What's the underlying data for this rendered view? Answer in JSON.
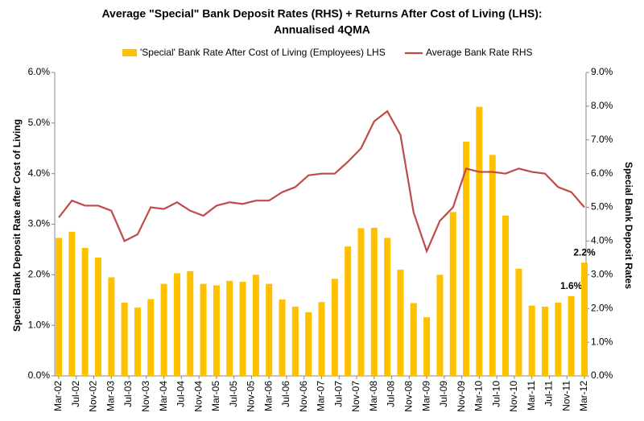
{
  "chart_data": {
    "type": "bar-line",
    "title": [
      "Average \"Special\" Bank Deposit Rates (RHS) + Returns After Cost of Living (LHS):",
      "Annualised  4QMA"
    ],
    "y_label": "Special Bank Deposit Rate after Cost of Living",
    "y2_label": "Special Bank Deposit Rates",
    "x": [
      "2002-03",
      "2002-06",
      "2002-09",
      "2002-12",
      "2003-03",
      "2003-06",
      "2003-09",
      "2003-12",
      "2004-03",
      "2004-06",
      "2004-09",
      "2004-12",
      "2005-03",
      "2005-06",
      "2005-09",
      "2005-12",
      "2006-03",
      "2006-06",
      "2006-09",
      "2006-12",
      "2007-03",
      "2007-06",
      "2007-09",
      "2007-12",
      "2008-03",
      "2008-06",
      "2008-09",
      "2008-12",
      "2009-03",
      "2009-06",
      "2009-09",
      "2009-12",
      "2010-03",
      "2010-06",
      "2010-09",
      "2010-12",
      "2011-03",
      "2011-06",
      "2011-09",
      "2011-12",
      "2012-03"
    ],
    "xticks": [
      {
        "value": "2002-03",
        "label": "Mar-02"
      },
      {
        "value": "2002-07",
        "label": "Jul-02"
      },
      {
        "value": "2002-11",
        "label": "Nov-02"
      },
      {
        "value": "2003-03",
        "label": "Mar-03"
      },
      {
        "value": "2003-07",
        "label": "Jul-03"
      },
      {
        "value": "2003-11",
        "label": "Nov-03"
      },
      {
        "value": "2004-03",
        "label": "Mar-04"
      },
      {
        "value": "2004-07",
        "label": "Jul-04"
      },
      {
        "value": "2004-11",
        "label": "Nov-04"
      },
      {
        "value": "2005-03",
        "label": "Mar-05"
      },
      {
        "value": "2005-07",
        "label": "Jul-05"
      },
      {
        "value": "2005-11",
        "label": "Nov-05"
      },
      {
        "value": "2006-03",
        "label": "Mar-06"
      },
      {
        "value": "2006-07",
        "label": "Jul-06"
      },
      {
        "value": "2006-11",
        "label": "Nov-06"
      },
      {
        "value": "2007-03",
        "label": "Mar-07"
      },
      {
        "value": "2007-07",
        "label": "Jul-07"
      },
      {
        "value": "2007-11",
        "label": "Nov-07"
      },
      {
        "value": "2008-03",
        "label": "Mar-08"
      },
      {
        "value": "2008-07",
        "label": "Jul-08"
      },
      {
        "value": "2008-11",
        "label": "Nov-08"
      },
      {
        "value": "2009-03",
        "label": "Mar-09"
      },
      {
        "value": "2009-07",
        "label": "Jul-09"
      },
      {
        "value": "2009-11",
        "label": "Nov-09"
      },
      {
        "value": "2010-03",
        "label": "Mar-10"
      },
      {
        "value": "2010-07",
        "label": "Jul-10"
      },
      {
        "value": "2010-11",
        "label": "Nov-10"
      },
      {
        "value": "2011-03",
        "label": "Mar-11"
      },
      {
        "value": "2011-07",
        "label": "Jul-11"
      },
      {
        "value": "2011-11",
        "label": "Nov-11"
      },
      {
        "value": "2012-03",
        "label": "Mar-12"
      }
    ],
    "ylim": [
      0,
      6
    ],
    "yticks": [
      {
        "value": 0,
        "label": "0.0%"
      },
      {
        "value": 1,
        "label": "1.0%"
      },
      {
        "value": 2,
        "label": "2.0%"
      },
      {
        "value": 3,
        "label": "3.0%"
      },
      {
        "value": 4,
        "label": "4.0%"
      },
      {
        "value": 5,
        "label": "5.0%"
      },
      {
        "value": 6,
        "label": "6.0%"
      }
    ],
    "y2lim": [
      0,
      9
    ],
    "y2ticks": [
      {
        "value": 0,
        "label": "0.0%"
      },
      {
        "value": 1,
        "label": "1.0%"
      },
      {
        "value": 2,
        "label": "2.0%"
      },
      {
        "value": 3,
        "label": "3.0%"
      },
      {
        "value": 4,
        "label": "4.0%"
      },
      {
        "value": 5,
        "label": "5.0%"
      },
      {
        "value": 6,
        "label": "6.0%"
      },
      {
        "value": 7,
        "label": "7.0%"
      },
      {
        "value": 8,
        "label": "8.0%"
      },
      {
        "value": 9,
        "label": "9.0%"
      }
    ],
    "legend": "top",
    "series": [
      {
        "name": "'Special' Bank Rate After Cost of Living (Employees) LHS",
        "type": "bar",
        "color": "#ffc000",
        "values": [
          2.73,
          2.85,
          2.53,
          2.34,
          1.95,
          1.45,
          1.35,
          1.52,
          1.82,
          2.03,
          2.07,
          1.82,
          1.79,
          1.88,
          1.86,
          2.0,
          1.82,
          1.51,
          1.37,
          1.26,
          1.46,
          1.92,
          2.56,
          2.92,
          2.93,
          2.73,
          2.1,
          1.44,
          1.16,
          2.0,
          3.24,
          4.63,
          5.32,
          4.37,
          3.17,
          2.12,
          1.39,
          1.37,
          1.45,
          1.58,
          2.24
        ],
        "value_labels": [
          null,
          null,
          null,
          null,
          null,
          null,
          null,
          null,
          null,
          null,
          null,
          null,
          null,
          null,
          null,
          null,
          null,
          null,
          null,
          null,
          null,
          null,
          null,
          null,
          null,
          null,
          null,
          null,
          null,
          null,
          null,
          null,
          null,
          null,
          null,
          null,
          null,
          null,
          null,
          "1.6%",
          "2.2%"
        ]
      },
      {
        "name": "Average Bank Rate RHS",
        "type": "line",
        "axis": "y2",
        "color": "#be4b48",
        "values": [
          4.7,
          5.2,
          5.05,
          5.05,
          4.9,
          4.0,
          4.2,
          5.0,
          4.95,
          5.15,
          4.9,
          4.75,
          5.05,
          5.15,
          5.1,
          5.2,
          5.2,
          5.45,
          5.6,
          5.95,
          6.0,
          6.0,
          6.35,
          6.75,
          7.55,
          7.85,
          7.15,
          4.85,
          3.7,
          4.6,
          5.0,
          6.15,
          6.05,
          6.05,
          6.0,
          6.15,
          6.05,
          6.0,
          5.6,
          5.45,
          5.0
        ]
      }
    ]
  }
}
